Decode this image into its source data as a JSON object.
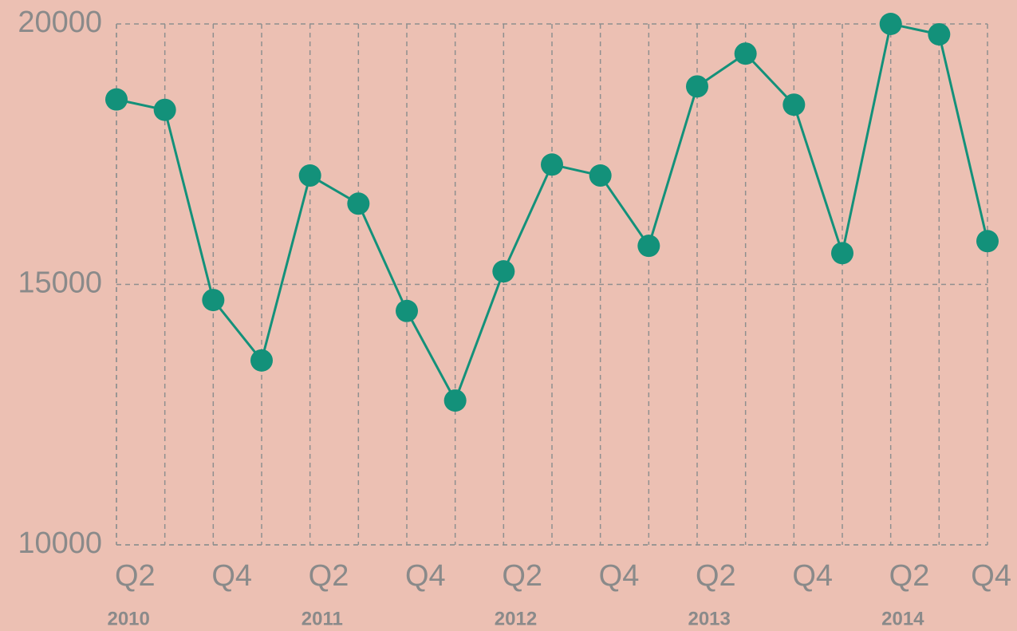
{
  "chart_data": {
    "type": "line",
    "categories": [
      "Q2",
      null,
      "Q4",
      null,
      "Q2",
      null,
      "Q4",
      null,
      "Q2",
      null,
      "Q4",
      null,
      "Q2",
      null,
      "Q4",
      null,
      "Q2",
      null,
      "Q4"
    ],
    "groups": [
      "2010",
      "2011",
      "2012",
      "2013",
      "2014"
    ],
    "series": [
      {
        "color": "#13917a",
        "values": [
          18550,
          18350,
          14700,
          13540,
          17090,
          16550,
          14490,
          12770,
          15250,
          17300,
          17090,
          15740,
          18800,
          19430,
          18450,
          15600,
          20000,
          19800,
          15830
        ]
      }
    ],
    "ylim": [
      10000,
      20000
    ],
    "yticks": [
      10000,
      15000,
      20000
    ],
    "grid": true
  }
}
